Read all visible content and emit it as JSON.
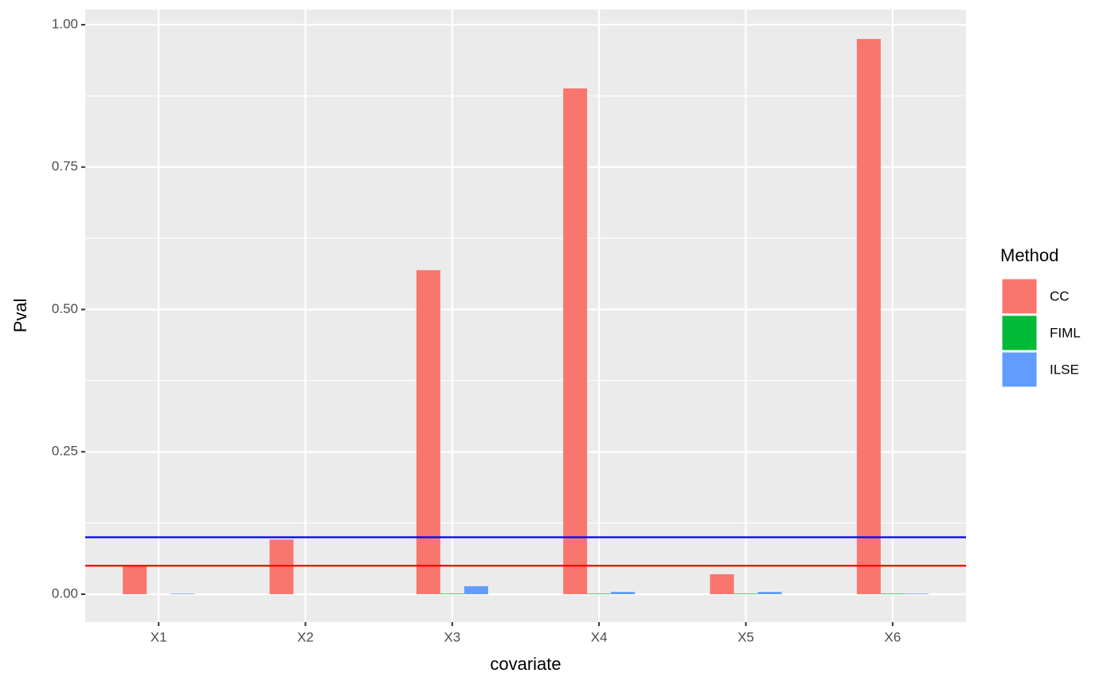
{
  "chart_data": {
    "type": "bar",
    "x_label": "covariate",
    "y_label": "Pval",
    "categories": [
      "X1",
      "X2",
      "X3",
      "X4",
      "X5",
      "X6"
    ],
    "series": [
      {
        "name": "CC",
        "color": "#F8766D",
        "values": [
          0.05,
          0.096,
          0.569,
          0.888,
          0.035,
          0.975
        ]
      },
      {
        "name": "FIML",
        "color": "#00BA38",
        "values": [
          0.0,
          0.0,
          0.001,
          0.001,
          0.001,
          0.001
        ]
      },
      {
        "name": "ILSE",
        "color": "#619CFF",
        "values": [
          0.001,
          0.0,
          0.014,
          0.004,
          0.004,
          0.001
        ]
      }
    ],
    "hlines": [
      {
        "value": 0.1,
        "color": "#0000FF"
      },
      {
        "value": 0.05,
        "color": "#FF0000"
      }
    ],
    "ylim": [
      -0.049,
      1.0266
    ],
    "yticks": [
      {
        "value": 0,
        "label": "0.00"
      },
      {
        "value": 0.25,
        "label": "0.25"
      },
      {
        "value": 0.5,
        "label": "0.50"
      },
      {
        "value": 0.75,
        "label": "0.75"
      },
      {
        "value": 1,
        "label": "1.00"
      }
    ],
    "legend_title": "Method",
    "legend_position": "right",
    "grid": true
  }
}
